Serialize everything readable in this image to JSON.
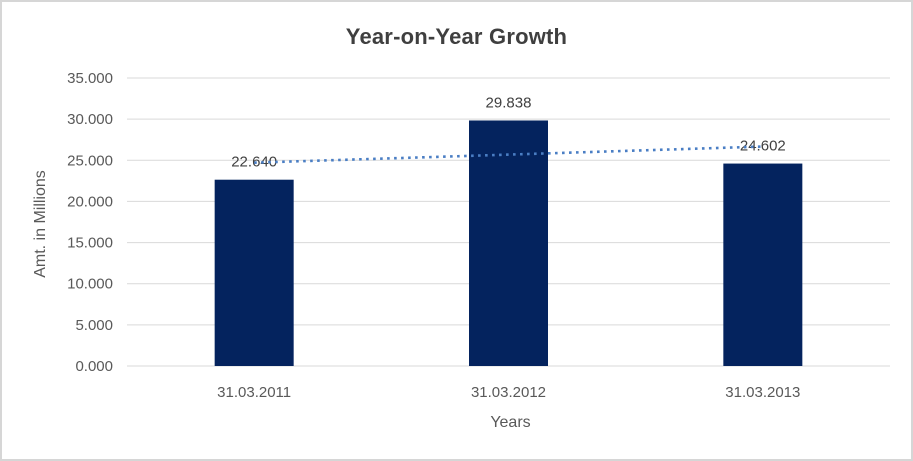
{
  "window": {
    "background": "#ffffff",
    "border_color": "#d6d6d6"
  },
  "chart_data": {
    "type": "bar",
    "title": "Year-on-Year Growth",
    "xlabel": "Years",
    "ylabel": "Amt. in Millions",
    "categories": [
      "31.03.2011",
      "31.03.2012",
      "31.03.2013"
    ],
    "values": [
      22.64,
      29.838,
      24.602
    ],
    "data_labels": [
      "22.640",
      "29.838",
      "24.602"
    ],
    "ylim": [
      0,
      35
    ],
    "y_tick_values": [
      0,
      5,
      10,
      15,
      20,
      25,
      30,
      35
    ],
    "y_tick_labels": [
      "0.000",
      "5.000",
      "10.000",
      "15.000",
      "20.000",
      "25.000",
      "30.000",
      "35.000"
    ],
    "grid": true,
    "legend": "none",
    "trendline": {
      "type": "linear",
      "style": "dotted",
      "start_value": 24.71,
      "end_value": 26.67,
      "color": "#4a7ec4"
    },
    "colors": {
      "bar": "#04235e",
      "gridline": "#d9d9d9",
      "axis_line": "#d9d9d9",
      "axis_text": "#595959",
      "data_label_text": "#404040",
      "title_text": "#3f3f3f"
    }
  }
}
